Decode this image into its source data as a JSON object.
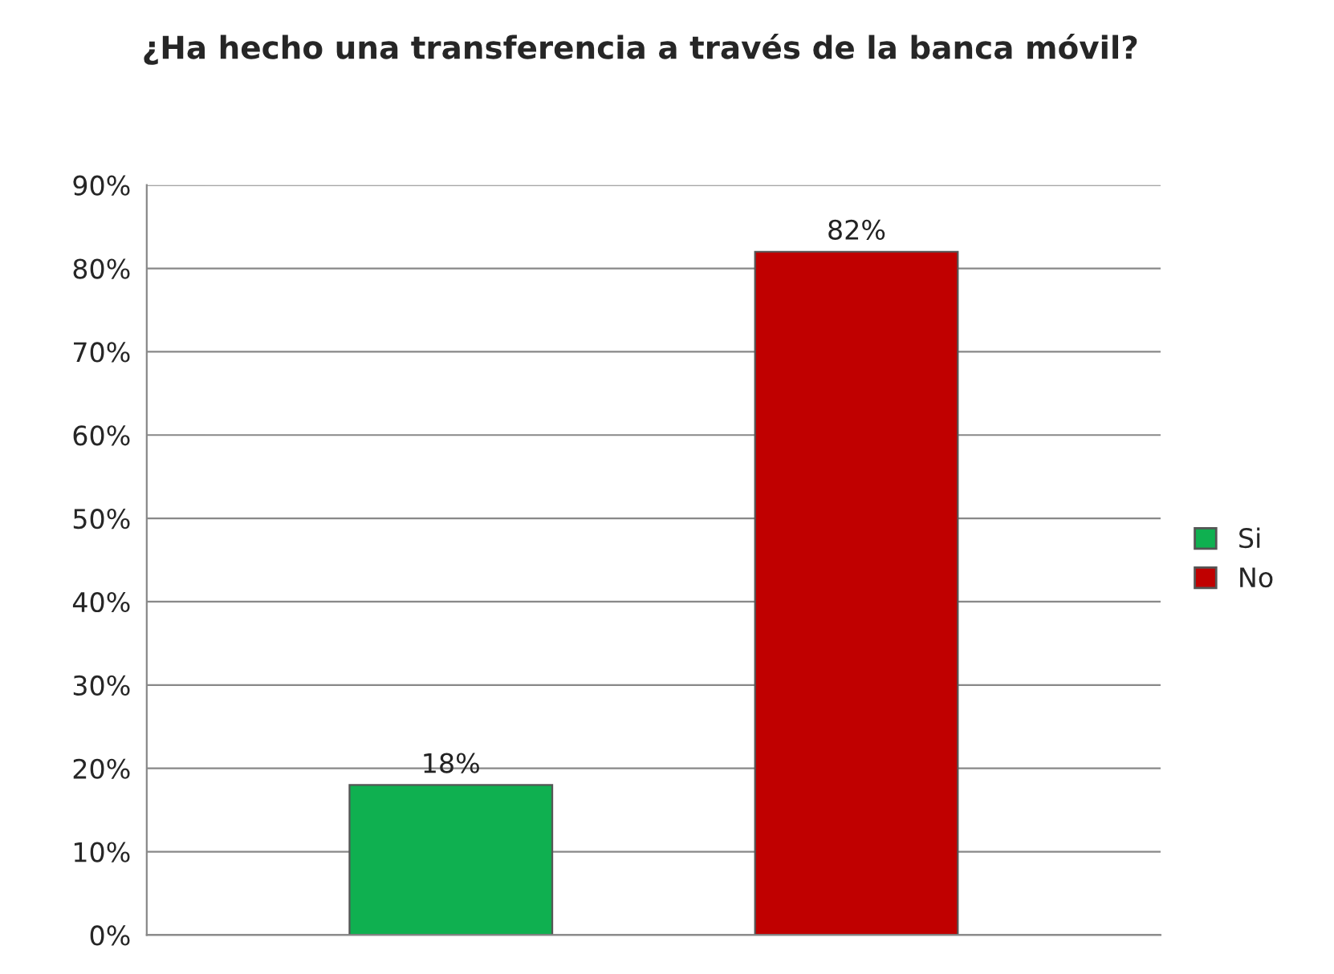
{
  "chart_data": {
    "type": "bar",
    "title": "¿Ha hecho una transferencia a través de la banca móvil?",
    "categories": [
      null
    ],
    "series": [
      {
        "name": "Si",
        "color": "#0fb050",
        "values": [
          18
        ],
        "value_labels": [
          "18%"
        ]
      },
      {
        "name": "No",
        "color": "#c00000",
        "values": [
          82
        ],
        "value_labels": [
          "82%"
        ]
      }
    ],
    "ylim": [
      0,
      90
    ],
    "yticks": [
      {
        "value": 0,
        "label": "0%"
      },
      {
        "value": 10,
        "label": "10%"
      },
      {
        "value": 20,
        "label": "20%"
      },
      {
        "value": 30,
        "label": "30%"
      },
      {
        "value": 40,
        "label": "40%"
      },
      {
        "value": 50,
        "label": "50%"
      },
      {
        "value": 60,
        "label": "60%"
      },
      {
        "value": 70,
        "label": "70%"
      },
      {
        "value": 80,
        "label": "80%"
      },
      {
        "value": 90,
        "label": "90%"
      }
    ],
    "grid": "y",
    "legend": "right"
  }
}
